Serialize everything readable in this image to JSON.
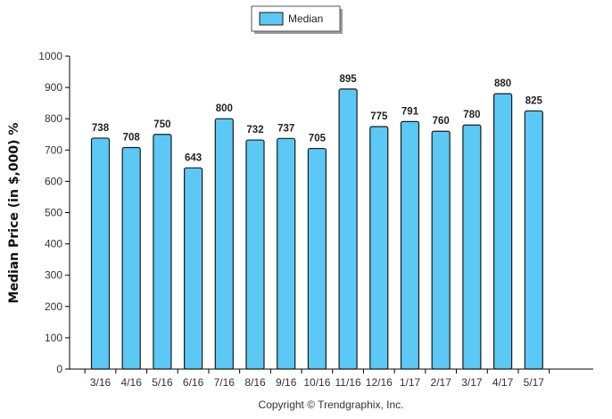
{
  "chart_data": {
    "type": "bar",
    "categories": [
      "3/16",
      "4/16",
      "5/16",
      "6/16",
      "7/16",
      "8/16",
      "9/16",
      "10/16",
      "11/16",
      "12/16",
      "1/17",
      "2/17",
      "3/17",
      "4/17",
      "5/17"
    ],
    "series": [
      {
        "name": "Median",
        "values": [
          738,
          708,
          750,
          643,
          800,
          732,
          737,
          705,
          895,
          775,
          791,
          760,
          780,
          880,
          825
        ]
      }
    ],
    "ylabel": "Median Price (in $,000) %",
    "ylim": [
      0,
      1000
    ],
    "yticks": [
      0,
      100,
      200,
      300,
      400,
      500,
      600,
      700,
      800,
      900,
      1000
    ],
    "legend_position": "top-center",
    "grid": false,
    "bar_color": "#5bc8f5",
    "bar_edge_color": "#1a1a1a"
  },
  "footer": {
    "copyright": "Copyright © Trendgraphix, Inc."
  }
}
